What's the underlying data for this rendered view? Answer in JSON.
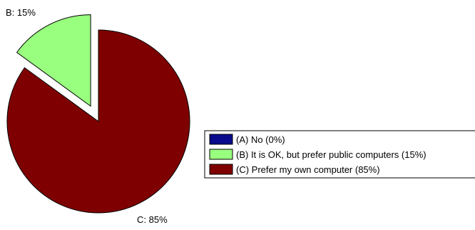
{
  "chart_data": {
    "type": "pie",
    "slices": [
      {
        "key": "A",
        "legend": "(A) No (0%)",
        "value": 0,
        "label": "",
        "color": "#0a0a8c"
      },
      {
        "key": "B",
        "legend": "(B) It is OK, but prefer public computers (15%)",
        "value": 15,
        "label": "B: 15%",
        "color": "#99ff7f"
      },
      {
        "key": "C",
        "legend": "(C) Prefer my own computer (85%)",
        "value": 85,
        "label": "C: 85%",
        "color": "#7f0000"
      }
    ],
    "legend_position": "right"
  }
}
